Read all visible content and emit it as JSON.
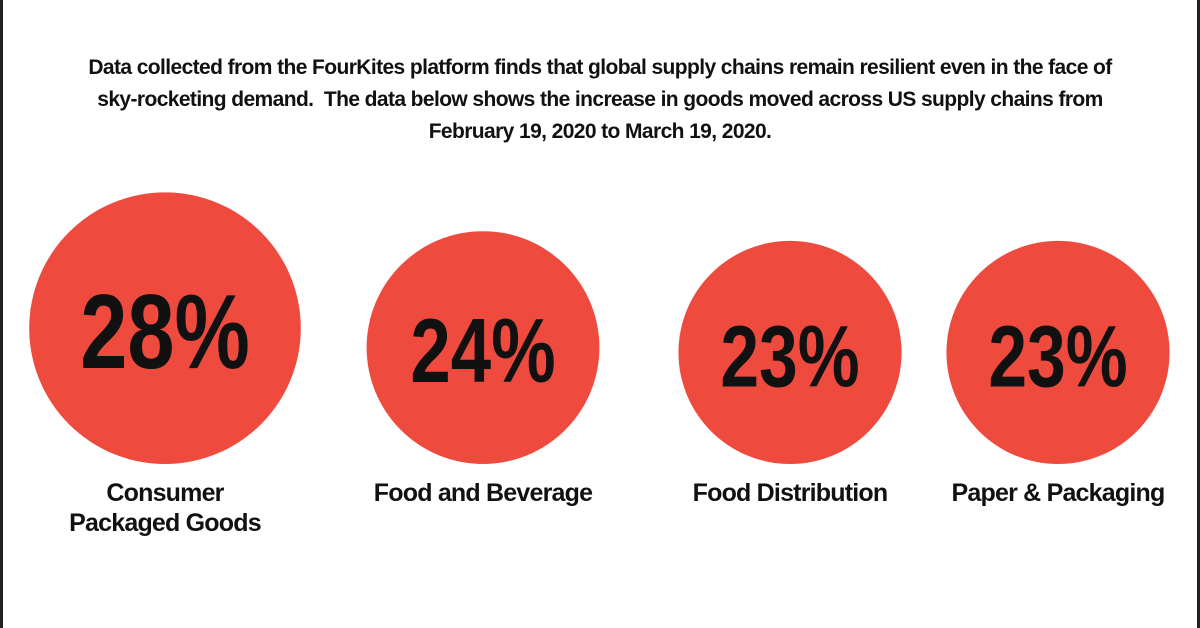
{
  "chart_data": {
    "type": "bubble",
    "title": "Data collected from the FourKites platform finds that global supply chains remain resilient even in the face of sky-rocketing demand.  The data below shows the increase in goods moved across US supply chains from February 19, 2020 to March 19, 2020.",
    "categories": [
      "Consumer Packaged Goods",
      "Food and Beverage",
      "Food Distribution",
      "Paper & Packaging"
    ],
    "values": [
      28,
      24,
      23,
      23
    ],
    "value_labels": [
      "28%",
      "24%",
      "23%",
      "23%"
    ],
    "color": "#ee4b3e"
  }
}
